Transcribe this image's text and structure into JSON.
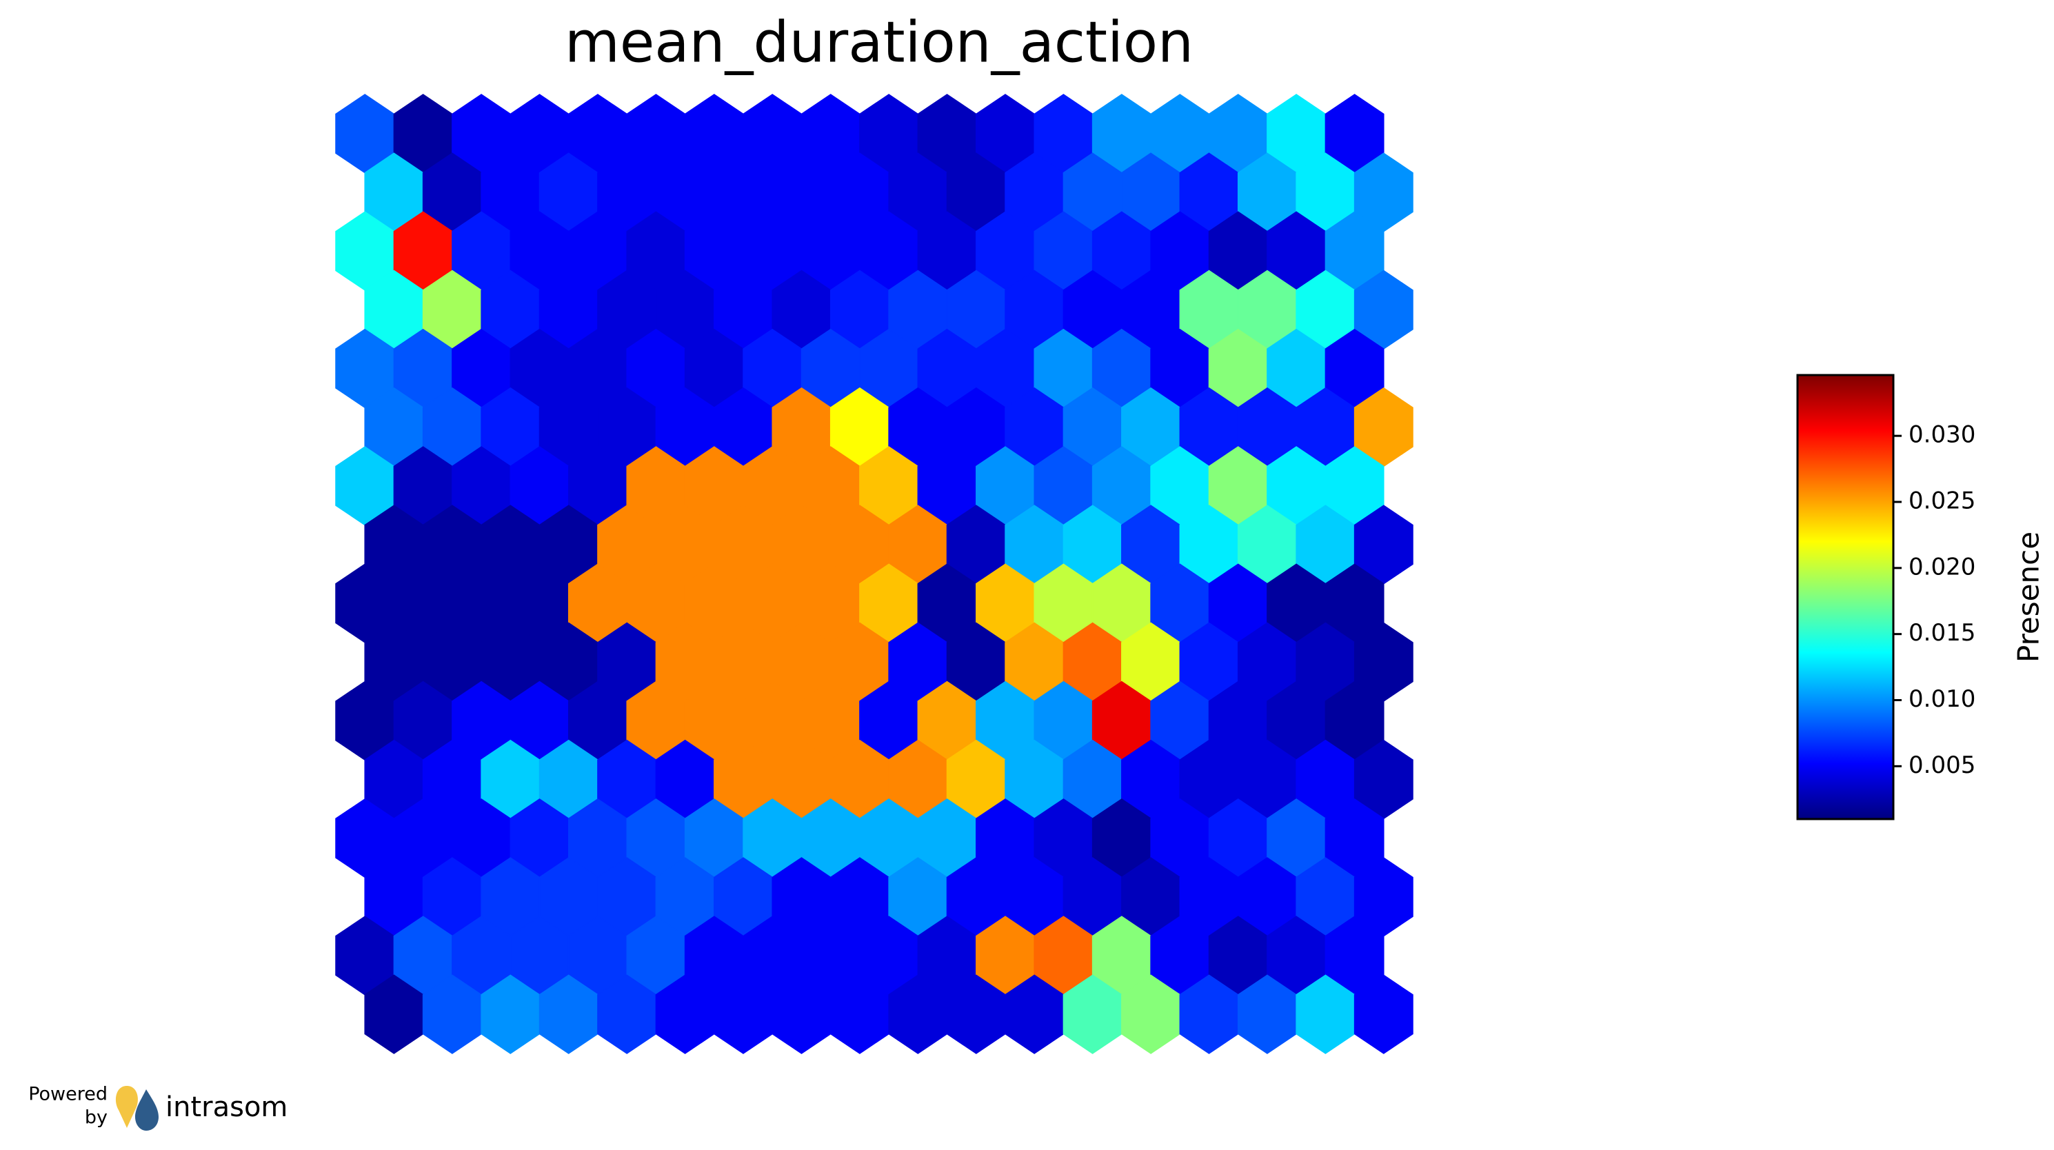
{
  "chart_data": {
    "type": "hexmap",
    "title": "mean_duration_action",
    "colormap": "jet",
    "colorbar_label": "Presence",
    "clim": [
      0.001,
      0.0346
    ],
    "cticks": [
      0.005,
      {
        "value": 0.01,
        "label": "0.010"
      },
      0.015,
      {
        "value": 0.02,
        "label": "0.020"
      },
      0.025,
      {
        "value": 0.03,
        "label": "0.030"
      }
    ],
    "values": [
      [
        0.008,
        0.002,
        0.005,
        0.005,
        0.005,
        0.005,
        0.005,
        0.005,
        0.005,
        0.004,
        0.003,
        0.004,
        0.006,
        0.01,
        0.01,
        0.01,
        0.013,
        0.005
      ],
      [
        0.012,
        0.003,
        0.005,
        0.006,
        0.005,
        0.005,
        0.005,
        0.005,
        0.005,
        0.004,
        0.003,
        0.006,
        0.008,
        0.008,
        0.006,
        0.011,
        0.013,
        0.01
      ],
      [
        0.014,
        0.03,
        0.006,
        0.005,
        0.005,
        0.004,
        0.005,
        0.005,
        0.005,
        0.005,
        0.004,
        0.006,
        0.007,
        0.006,
        0.005,
        0.003,
        0.004,
        0.01
      ],
      [
        0.014,
        0.019,
        0.006,
        0.005,
        0.004,
        0.004,
        0.005,
        0.004,
        0.006,
        0.007,
        0.007,
        0.006,
        0.005,
        0.005,
        0.017,
        0.017,
        0.014,
        0.009
      ],
      [
        0.009,
        0.008,
        0.005,
        0.004,
        0.004,
        0.005,
        0.004,
        0.006,
        0.007,
        0.007,
        0.006,
        0.006,
        0.01,
        0.008,
        0.005,
        0.018,
        0.012,
        0.005
      ],
      [
        0.009,
        0.008,
        0.006,
        0.004,
        0.004,
        0.005,
        0.005,
        0.026,
        0.022,
        0.005,
        0.005,
        0.006,
        0.009,
        0.011,
        0.006,
        0.006,
        0.006,
        0.025
      ],
      [
        0.012,
        0.003,
        0.004,
        0.005,
        0.004,
        0.026,
        0.026,
        0.026,
        0.026,
        0.024,
        0.005,
        0.01,
        0.008,
        0.01,
        0.013,
        0.018,
        0.013,
        0.013
      ],
      [
        0.002,
        0.002,
        0.002,
        0.002,
        0.026,
        0.026,
        0.026,
        0.026,
        0.026,
        0.026,
        0.003,
        0.011,
        0.012,
        0.007,
        0.013,
        0.015,
        0.012,
        0.004
      ],
      [
        0.002,
        0.002,
        0.002,
        0.002,
        0.026,
        0.026,
        0.026,
        0.026,
        0.026,
        0.024,
        0.002,
        0.024,
        0.02,
        0.02,
        0.007,
        0.005,
        0.002,
        0.002
      ],
      [
        0.002,
        0.002,
        0.002,
        0.002,
        0.003,
        0.026,
        0.026,
        0.026,
        0.026,
        0.005,
        0.002,
        0.025,
        0.027,
        0.021,
        0.006,
        0.004,
        0.003,
        0.002
      ],
      [
        0.002,
        0.003,
        0.005,
        0.005,
        0.003,
        0.026,
        0.026,
        0.026,
        0.026,
        0.005,
        0.025,
        0.011,
        0.01,
        0.031,
        0.007,
        0.004,
        0.003,
        0.002
      ],
      [
        0.004,
        0.005,
        0.012,
        0.011,
        0.006,
        0.005,
        0.026,
        0.026,
        0.026,
        0.026,
        0.024,
        0.011,
        0.009,
        0.005,
        0.004,
        0.004,
        0.005,
        0.003
      ],
      [
        0.005,
        0.005,
        0.005,
        0.006,
        0.007,
        0.008,
        0.009,
        0.011,
        0.011,
        0.011,
        0.011,
        0.005,
        0.004,
        0.002,
        0.005,
        0.006,
        0.008,
        0.005
      ],
      [
        0.005,
        0.006,
        0.007,
        0.007,
        0.007,
        0.008,
        0.007,
        0.005,
        0.005,
        0.01,
        0.005,
        0.005,
        0.004,
        0.003,
        0.005,
        0.005,
        0.007,
        0.005
      ],
      [
        0.003,
        0.008,
        0.007,
        0.007,
        0.007,
        0.008,
        0.005,
        0.005,
        0.005,
        0.005,
        0.004,
        0.026,
        0.027,
        0.018,
        0.005,
        0.003,
        0.004,
        0.005
      ],
      [
        0.002,
        0.008,
        0.01,
        0.009,
        0.007,
        0.005,
        0.005,
        0.005,
        0.005,
        0.004,
        0.004,
        0.004,
        0.016,
        0.018,
        0.007,
        0.008,
        0.012,
        0.005
      ]
    ]
  },
  "footer": {
    "powered": "Powered",
    "by": "by",
    "brand": "intrasom"
  }
}
